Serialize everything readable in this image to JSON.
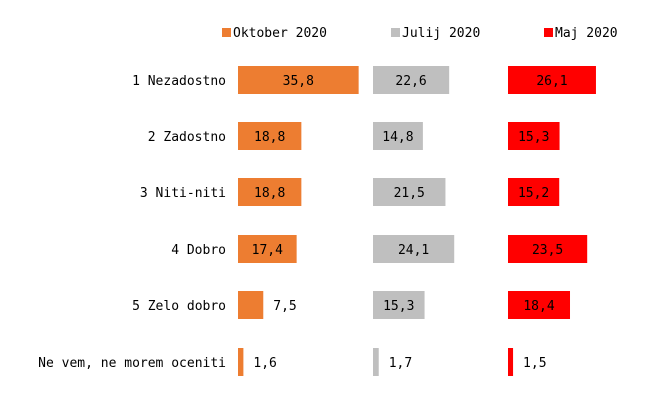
{
  "chart_data": {
    "type": "bar",
    "orientation": "horizontal",
    "layout": "small-multiples",
    "title": "",
    "legend_position": "top",
    "categories": [
      "1 Nezadostno",
      "2 Zadostno",
      "3 Niti-niti",
      "4 Dobro",
      "5 Zelo dobro",
      "Ne vem, ne morem oceniti"
    ],
    "series": [
      {
        "name": "Oktober 2020",
        "color": "#ed7d31",
        "values": [
          35.8,
          18.8,
          18.8,
          17.4,
          7.5,
          1.6
        ],
        "labels": [
          "35,8",
          "18,8",
          "18,8",
          "17,4",
          "7,5",
          "1,6"
        ]
      },
      {
        "name": "Julij 2020",
        "color": "#bfbfbf",
        "values": [
          22.6,
          14.8,
          21.5,
          24.1,
          15.3,
          1.7
        ],
        "labels": [
          "22,6",
          "14,8",
          "21,5",
          "24,1",
          "15,3",
          "1,7"
        ]
      },
      {
        "name": "Maj 2020",
        "color": "#ff0000",
        "values": [
          26.1,
          15.3,
          15.2,
          23.5,
          18.4,
          1.5
        ],
        "labels": [
          "26,1",
          "15,3",
          "15,2",
          "23,5",
          "18,4",
          "1,5"
        ]
      }
    ]
  }
}
